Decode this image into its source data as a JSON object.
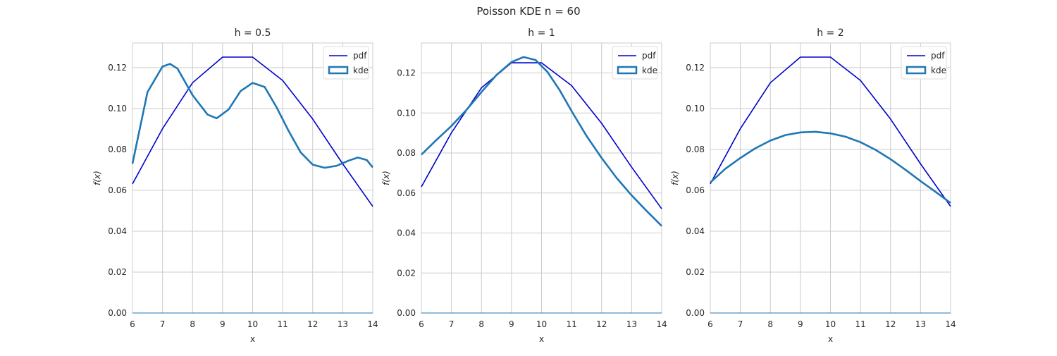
{
  "figure": {
    "title": "Poisson KDE n = 60"
  },
  "colors": {
    "pdf": "#0000cc",
    "kde": "#1f77b4",
    "grid": "#cccccc",
    "spine": "#cccccc",
    "text": "#262626"
  },
  "chart_data": [
    {
      "type": "line",
      "title": "h = 0.5",
      "xlabel": "x",
      "ylabel": "f(x)",
      "xlim": [
        6,
        14
      ],
      "ylim": [
        0,
        0.132
      ],
      "xticks": [
        "6",
        "7",
        "8",
        "9",
        "10",
        "11",
        "12",
        "13",
        "14"
      ],
      "yticks": [
        "0.00",
        "0.02",
        "0.04",
        "0.06",
        "0.08",
        "0.10",
        "0.12"
      ],
      "grid": true,
      "legend_position": "top-right",
      "legend": [
        "pdf",
        "kde"
      ],
      "series": [
        {
          "name": "pdf",
          "x": [
            6,
            7,
            8,
            9,
            10,
            11,
            12,
            13,
            14
          ],
          "y": [
            0.0631,
            0.0901,
            0.1126,
            0.1251,
            0.1251,
            0.1137,
            0.0948,
            0.0729,
            0.0521
          ]
        },
        {
          "name": "kde",
          "x": [
            6.0,
            6.5,
            7.0,
            7.25,
            7.5,
            8.0,
            8.5,
            8.8,
            9.2,
            9.6,
            10.0,
            10.4,
            10.8,
            11.2,
            11.6,
            12.0,
            12.4,
            12.8,
            13.2,
            13.5,
            13.8,
            14.0
          ],
          "y": [
            0.073,
            0.108,
            0.1205,
            0.1218,
            0.1195,
            0.1065,
            0.097,
            0.0952,
            0.0995,
            0.1085,
            0.1125,
            0.1105,
            0.1005,
            0.089,
            0.0785,
            0.0725,
            0.071,
            0.072,
            0.0745,
            0.076,
            0.0748,
            0.0712
          ]
        }
      ]
    },
    {
      "type": "line",
      "title": "h = 1",
      "xlabel": "x",
      "ylabel": "f(x)",
      "xlim": [
        6,
        14
      ],
      "ylim": [
        0,
        0.135
      ],
      "xticks": [
        "6",
        "7",
        "8",
        "9",
        "10",
        "11",
        "12",
        "13",
        "14"
      ],
      "yticks": [
        "0.00",
        "0.02",
        "0.04",
        "0.06",
        "0.08",
        "0.10",
        "0.12"
      ],
      "grid": true,
      "legend_position": "top-right",
      "legend": [
        "pdf",
        "kde"
      ],
      "series": [
        {
          "name": "pdf",
          "x": [
            6,
            7,
            8,
            9,
            10,
            11,
            12,
            13,
            14
          ],
          "y": [
            0.0631,
            0.0901,
            0.1126,
            0.1251,
            0.1251,
            0.1137,
            0.0948,
            0.0729,
            0.0521
          ]
        },
        {
          "name": "kde",
          "x": [
            6.0,
            6.5,
            7.0,
            7.5,
            8.0,
            8.5,
            9.0,
            9.4,
            9.8,
            10.2,
            10.6,
            11.0,
            11.5,
            12.0,
            12.5,
            13.0,
            13.5,
            14.0
          ],
          "y": [
            0.0792,
            0.0865,
            0.0935,
            0.1015,
            0.1105,
            0.119,
            0.1255,
            0.128,
            0.1265,
            0.1205,
            0.1115,
            0.101,
            0.0885,
            0.0775,
            0.0675,
            0.0588,
            0.051,
            0.0435
          ]
        }
      ]
    },
    {
      "type": "line",
      "title": "h = 2",
      "xlabel": "x",
      "ylabel": "f(x)",
      "xlim": [
        6,
        14
      ],
      "ylim": [
        0,
        0.132
      ],
      "xticks": [
        "6",
        "7",
        "8",
        "9",
        "10",
        "11",
        "12",
        "13",
        "14"
      ],
      "yticks": [
        "0.00",
        "0.02",
        "0.04",
        "0.06",
        "0.08",
        "0.10",
        "0.12"
      ],
      "grid": true,
      "legend_position": "top-right",
      "legend": [
        "pdf",
        "kde"
      ],
      "series": [
        {
          "name": "pdf",
          "x": [
            6,
            7,
            8,
            9,
            10,
            11,
            12,
            13,
            14
          ],
          "y": [
            0.0631,
            0.0901,
            0.1126,
            0.1251,
            0.1251,
            0.1137,
            0.0948,
            0.0729,
            0.0521
          ]
        },
        {
          "name": "kde",
          "x": [
            6.0,
            6.5,
            7.0,
            7.5,
            8.0,
            8.5,
            9.0,
            9.5,
            10.0,
            10.5,
            11.0,
            11.5,
            12.0,
            12.5,
            13.0,
            13.5,
            14.0
          ],
          "y": [
            0.0638,
            0.0705,
            0.0758,
            0.0805,
            0.0843,
            0.087,
            0.0883,
            0.0886,
            0.0878,
            0.0862,
            0.0835,
            0.0798,
            0.0752,
            0.07,
            0.0645,
            0.0592,
            0.0538
          ]
        }
      ]
    }
  ]
}
